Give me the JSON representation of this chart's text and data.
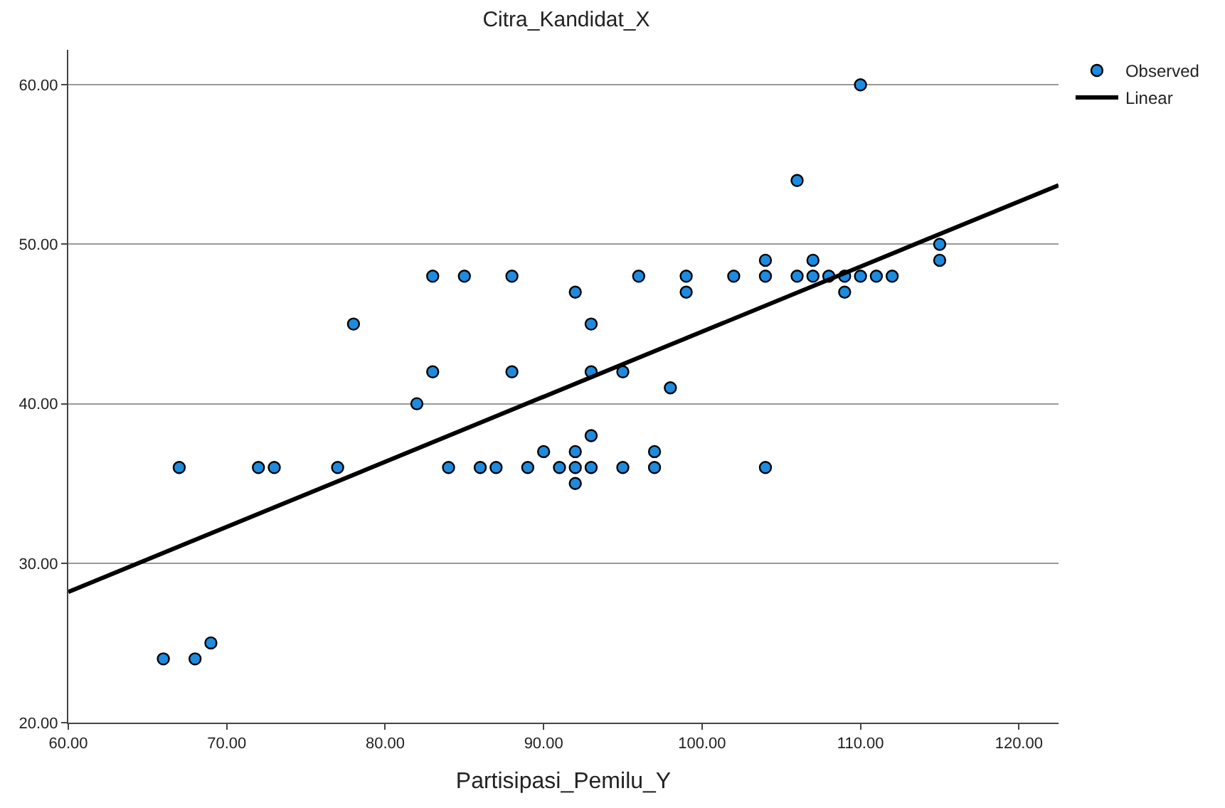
{
  "chart_data": {
    "type": "scatter",
    "title": "Citra_Kandidat_X",
    "xlabel": "Partisipasi_Pemilu_Y",
    "xlim": [
      60,
      122.5
    ],
    "ylim": [
      20,
      62.2
    ],
    "xticks": [
      {
        "value": 60,
        "label": "60.00"
      },
      {
        "value": 70,
        "label": "70.00"
      },
      {
        "value": 80,
        "label": "80.00"
      },
      {
        "value": 90,
        "label": "90.00"
      },
      {
        "value": 100,
        "label": "100.00"
      },
      {
        "value": 110,
        "label": "110.00"
      },
      {
        "value": 120,
        "label": "120.00"
      }
    ],
    "yticks": [
      {
        "value": 20,
        "label": "20.00"
      },
      {
        "value": 30,
        "label": "30.00"
      },
      {
        "value": 40,
        "label": "40.00"
      },
      {
        "value": 50,
        "label": "50.00"
      },
      {
        "value": 60,
        "label": "60.00"
      }
    ],
    "grid": "y",
    "legend": "top right",
    "series": [
      {
        "name": "Observed",
        "marker": "circle",
        "color": "#1c8be0",
        "x": [
          66,
          67,
          68,
          69,
          72,
          73,
          77,
          78,
          82,
          83,
          83,
          84,
          85,
          86,
          87,
          88,
          88,
          89,
          90,
          91,
          92,
          92,
          92,
          92,
          93,
          93,
          93,
          93,
          95,
          95,
          96,
          97,
          97,
          98,
          99,
          99,
          102,
          104,
          104,
          104,
          106,
          106,
          107,
          107,
          108,
          109,
          109,
          110,
          110,
          111,
          112,
          115,
          115
        ],
        "values": [
          24,
          36,
          24,
          25,
          36,
          36,
          36,
          45,
          40,
          48,
          42,
          36,
          48,
          36,
          36,
          48,
          42,
          36,
          37,
          36,
          47,
          37,
          36,
          35,
          45,
          42,
          38,
          36,
          42,
          36,
          48,
          37,
          36,
          41,
          48,
          47,
          48,
          49,
          48,
          36,
          54,
          48,
          49,
          48,
          48,
          48,
          47,
          60,
          48,
          48,
          48,
          50,
          49
        ]
      },
      {
        "name": "Linear",
        "type": "line",
        "marker": "none",
        "color": "#000000",
        "line_style": "solid",
        "x": [
          60,
          122.5
        ],
        "values": [
          28.2,
          53.7
        ]
      }
    ]
  }
}
